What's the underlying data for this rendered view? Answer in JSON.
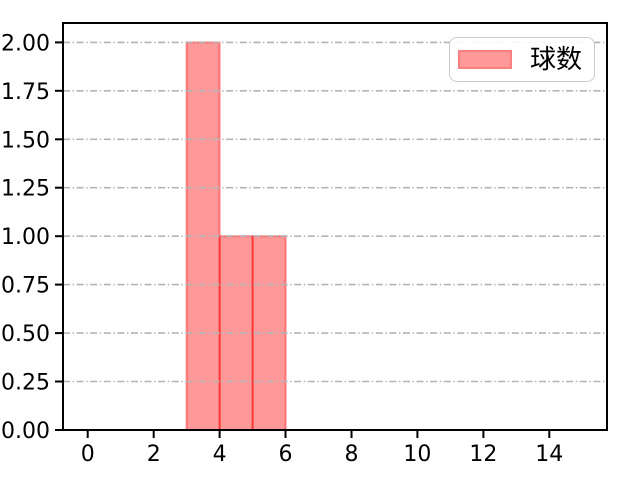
{
  "chart_data": {
    "type": "bar",
    "title": "",
    "xlabel": "",
    "ylabel": "",
    "series": [
      {
        "name": "球数",
        "bin_edges": [
          3,
          4,
          5,
          6
        ],
        "counts": [
          2,
          1,
          1
        ]
      }
    ],
    "xlim": [
      -0.75,
      15.75
    ],
    "ylim": [
      0,
      2.1
    ],
    "xticks": [
      {
        "v": 0,
        "label": "0"
      },
      {
        "v": 2,
        "label": "2"
      },
      {
        "v": 4,
        "label": "4"
      },
      {
        "v": 6,
        "label": "6"
      },
      {
        "v": 8,
        "label": "8"
      },
      {
        "v": 10,
        "label": "10"
      },
      {
        "v": 12,
        "label": "12"
      },
      {
        "v": 14,
        "label": "14"
      }
    ],
    "yticks": [
      {
        "v": 0,
        "label": "0.00"
      },
      {
        "v": 0.25,
        "label": "0.25"
      },
      {
        "v": 0.5,
        "label": "0.50"
      },
      {
        "v": 0.75,
        "label": "0.75"
      },
      {
        "v": 1,
        "label": "1.00"
      },
      {
        "v": 1.25,
        "label": "1.25"
      },
      {
        "v": 1.5,
        "label": "1.50"
      },
      {
        "v": 1.75,
        "label": "1.75"
      },
      {
        "v": 2,
        "label": "2.00"
      }
    ],
    "legend": {
      "position": "upper right",
      "entries": [
        "球数"
      ]
    },
    "grid": {
      "axis": "y",
      "linestyle": "dash-dot",
      "drawn_above_bars": true
    },
    "colors": {
      "bar_fill": "rgba(255,0,0,0.4)",
      "bar_edge": "rgba(255,0,0,0.4)",
      "grid": "#b4b4b4",
      "spine": "#000000",
      "tick_text": "#000000",
      "legend_border": "#cccccc",
      "legend_bg": "rgba(255,255,255,0.9)",
      "legend_swatch_fill": "#ff9999",
      "legend_swatch_edge": "#f98080"
    }
  }
}
